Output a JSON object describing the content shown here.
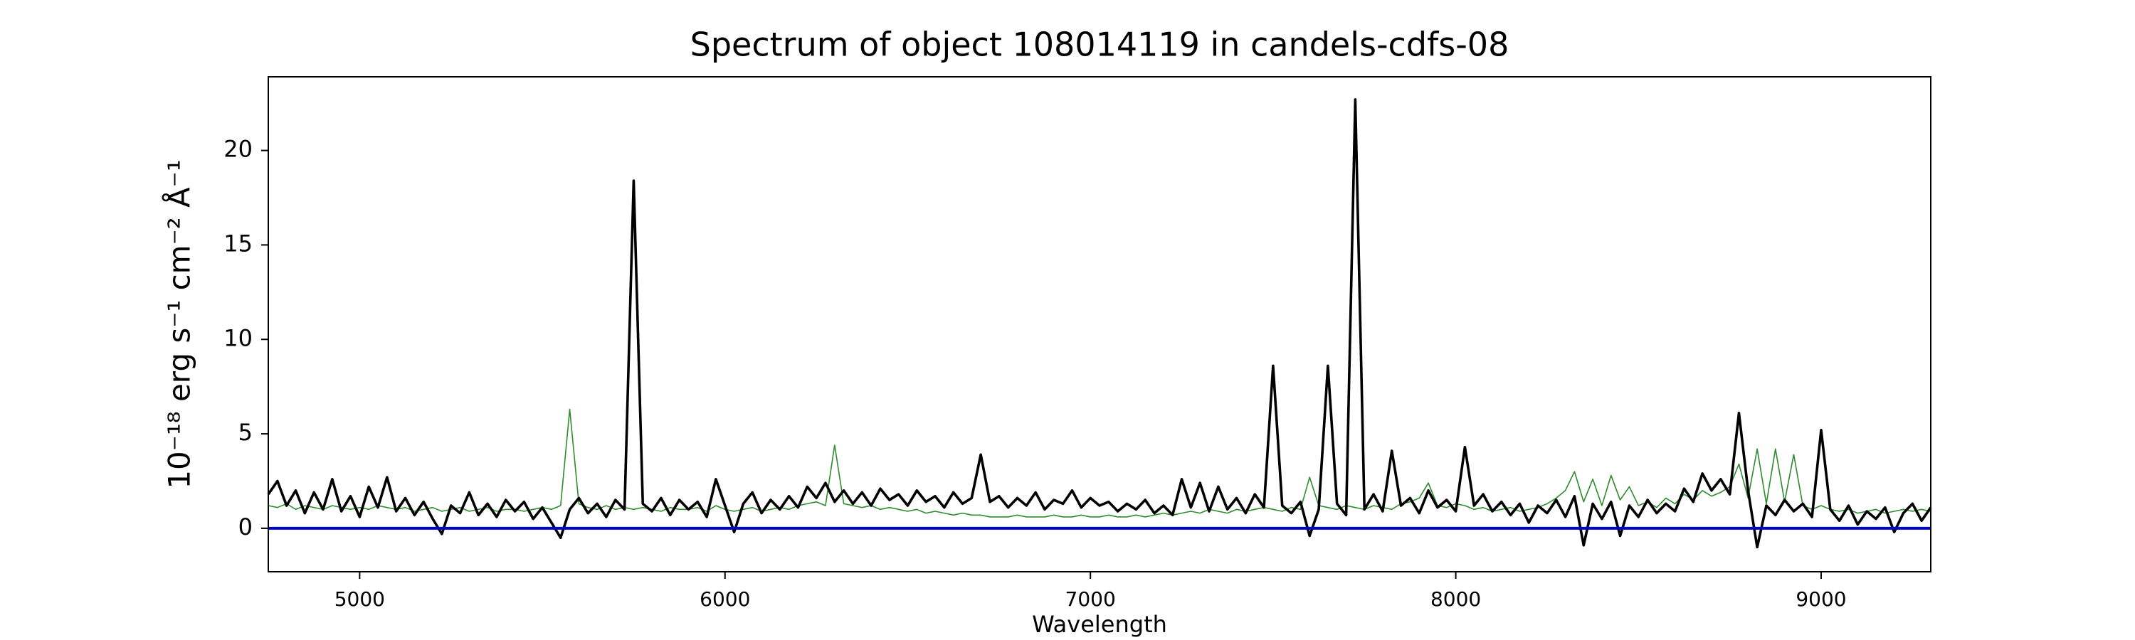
{
  "chart_data": {
    "type": "line",
    "title": "Spectrum of object 108014119 in candels-cdfs-08",
    "xlabel": "Wavelength",
    "ylabel": "10⁻¹⁸ erg s⁻¹ cm⁻² Å⁻¹",
    "xlim": [
      4750,
      9300
    ],
    "ylim": [
      -2.3,
      23.9
    ],
    "xticks": [
      5000,
      6000,
      7000,
      8000,
      9000
    ],
    "yticks": [
      0,
      5,
      10,
      15,
      20
    ],
    "zero_line": {
      "value": 0,
      "color": "#0000cc"
    },
    "x": [
      4750,
      4775,
      4800,
      4825,
      4850,
      4875,
      4900,
      4925,
      4950,
      4975,
      5000,
      5025,
      5050,
      5075,
      5100,
      5125,
      5150,
      5175,
      5200,
      5225,
      5250,
      5275,
      5300,
      5325,
      5350,
      5375,
      5400,
      5425,
      5450,
      5475,
      5500,
      5525,
      5550,
      5575,
      5600,
      5625,
      5650,
      5675,
      5700,
      5725,
      5750,
      5775,
      5800,
      5825,
      5850,
      5875,
      5900,
      5925,
      5950,
      5975,
      6000,
      6025,
      6050,
      6075,
      6100,
      6125,
      6150,
      6175,
      6200,
      6225,
      6250,
      6275,
      6300,
      6325,
      6350,
      6375,
      6400,
      6425,
      6450,
      6475,
      6500,
      6525,
      6550,
      6575,
      6600,
      6625,
      6650,
      6675,
      6700,
      6725,
      6750,
      6775,
      6800,
      6825,
      6850,
      6875,
      6900,
      6925,
      6950,
      6975,
      7000,
      7025,
      7050,
      7075,
      7100,
      7125,
      7150,
      7175,
      7200,
      7225,
      7250,
      7275,
      7300,
      7325,
      7350,
      7375,
      7400,
      7425,
      7450,
      7475,
      7500,
      7525,
      7550,
      7575,
      7600,
      7625,
      7650,
      7675,
      7700,
      7725,
      7750,
      7775,
      7800,
      7825,
      7850,
      7875,
      7900,
      7925,
      7950,
      7975,
      8000,
      8025,
      8050,
      8075,
      8100,
      8125,
      8150,
      8175,
      8200,
      8225,
      8250,
      8275,
      8300,
      8325,
      8350,
      8375,
      8400,
      8425,
      8450,
      8475,
      8500,
      8525,
      8550,
      8575,
      8600,
      8625,
      8650,
      8675,
      8700,
      8725,
      8750,
      8775,
      8800,
      8825,
      8850,
      8875,
      8900,
      8925,
      8950,
      8975,
      9000,
      9025,
      9050,
      9075,
      9100,
      9125,
      9150,
      9175,
      9200,
      9225,
      9250,
      9275,
      9300
    ],
    "series": [
      {
        "color": "#2e8b2e",
        "values": [
          1.2,
          1.1,
          1.3,
          1.0,
          1.2,
          1.1,
          1.0,
          1.2,
          1.1,
          1.0,
          1.1,
          1.0,
          1.2,
          1.1,
          1.0,
          1.1,
          0.9,
          1.0,
          1.1,
          0.9,
          1.0,
          1.1,
          0.9,
          1.0,
          1.1,
          0.9,
          1.0,
          1.0,
          0.9,
          1.0,
          1.1,
          1.0,
          1.2,
          6.3,
          1.3,
          1.1,
          1.0,
          1.2,
          1.0,
          1.1,
          1.0,
          1.1,
          1.0,
          0.9,
          1.1,
          1.0,
          1.0,
          1.1,
          0.9,
          1.2,
          1.0,
          0.9,
          1.0,
          1.1,
          0.9,
          1.0,
          1.1,
          1.0,
          1.2,
          1.3,
          1.4,
          1.2,
          4.4,
          1.3,
          1.2,
          1.1,
          1.2,
          1.0,
          1.1,
          1.0,
          0.9,
          1.0,
          0.8,
          0.9,
          0.8,
          0.7,
          0.8,
          0.7,
          0.7,
          0.6,
          0.6,
          0.6,
          0.7,
          0.6,
          0.6,
          0.6,
          0.7,
          0.6,
          0.6,
          0.7,
          0.6,
          0.6,
          0.7,
          0.6,
          0.6,
          0.7,
          0.6,
          0.7,
          0.8,
          0.7,
          0.8,
          0.9,
          0.8,
          1.0,
          0.9,
          0.8,
          1.0,
          0.9,
          1.0,
          1.1,
          1.0,
          0.9,
          1.1,
          1.0,
          2.7,
          1.2,
          1.1,
          1.0,
          1.2,
          1.1,
          1.0,
          1.2,
          1.1,
          1.0,
          1.3,
          1.4,
          1.6,
          2.4,
          1.2,
          1.1,
          1.3,
          1.2,
          1.0,
          1.1,
          0.9,
          1.0,
          1.1,
          0.9,
          1.0,
          1.1,
          1.3,
          1.6,
          2.0,
          3.0,
          1.4,
          2.6,
          1.2,
          2.8,
          1.5,
          2.2,
          1.2,
          1.4,
          1.1,
          1.6,
          1.3,
          1.8,
          1.5,
          2.0,
          1.7,
          1.9,
          2.2,
          3.4,
          1.6,
          4.2,
          1.3,
          4.2,
          1.4,
          3.9,
          1.2,
          1.0,
          1.2,
          1.0,
          0.9,
          1.0,
          0.8,
          0.9,
          1.0,
          0.8,
          0.9,
          1.0,
          0.9,
          1.0,
          0.9
        ]
      },
      {
        "color": "#000000",
        "values": [
          1.8,
          2.5,
          1.2,
          2.0,
          0.8,
          1.9,
          1.0,
          2.6,
          0.9,
          1.7,
          0.6,
          2.2,
          1.1,
          2.7,
          0.9,
          1.6,
          0.7,
          1.4,
          0.5,
          -0.3,
          1.2,
          0.8,
          1.9,
          0.7,
          1.3,
          0.6,
          1.5,
          0.9,
          1.4,
          0.5,
          1.1,
          0.3,
          -0.5,
          1.0,
          1.6,
          0.8,
          1.3,
          0.6,
          1.5,
          1.0,
          18.4,
          1.3,
          0.9,
          1.6,
          0.7,
          1.5,
          1.0,
          1.4,
          0.6,
          2.6,
          1.2,
          -0.2,
          1.3,
          1.9,
          0.8,
          1.5,
          1.0,
          1.7,
          1.1,
          2.2,
          1.6,
          2.4,
          1.4,
          2.0,
          1.3,
          1.9,
          1.2,
          2.1,
          1.5,
          1.8,
          1.2,
          2.0,
          1.4,
          1.7,
          1.1,
          1.9,
          1.3,
          1.6,
          3.9,
          1.4,
          1.7,
          1.1,
          1.6,
          1.2,
          1.9,
          1.0,
          1.5,
          1.3,
          2.0,
          1.1,
          1.6,
          1.2,
          1.4,
          0.9,
          1.3,
          1.0,
          1.5,
          0.8,
          1.2,
          0.7,
          2.6,
          1.1,
          2.4,
          0.9,
          2.2,
          1.0,
          1.6,
          0.8,
          1.8,
          1.1,
          8.6,
          1.2,
          0.8,
          1.4,
          -0.4,
          1.0,
          8.6,
          1.3,
          0.7,
          22.7,
          1.0,
          1.8,
          0.9,
          4.1,
          1.2,
          1.6,
          0.8,
          2.0,
          1.1,
          1.5,
          0.9,
          4.3,
          1.2,
          1.8,
          0.9,
          1.4,
          0.7,
          1.3,
          0.3,
          1.2,
          0.8,
          1.5,
          0.6,
          1.7,
          -0.9,
          1.3,
          0.5,
          1.4,
          -0.4,
          1.2,
          0.6,
          1.5,
          0.8,
          1.3,
          0.9,
          2.1,
          1.4,
          2.9,
          2.0,
          2.6,
          1.8,
          6.1,
          2.0,
          -1.0,
          1.2,
          0.7,
          1.5,
          0.9,
          1.3,
          0.6,
          5.2,
          1.0,
          0.4,
          1.2,
          0.2,
          0.9,
          0.5,
          1.1,
          -0.2,
          0.8,
          1.3,
          0.4,
          1.1
        ]
      }
    ]
  }
}
